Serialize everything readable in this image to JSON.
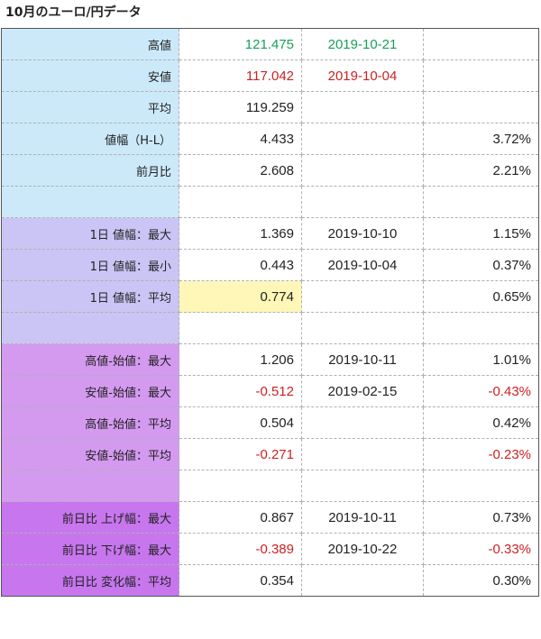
{
  "title": "10月のユーロ/円データ",
  "rows": [
    {
      "label": "高値",
      "value": "121.475",
      "date": "2019-10-21",
      "pct": ""
    },
    {
      "label": "安値",
      "value": "117.042",
      "date": "2019-10-04",
      "pct": ""
    },
    {
      "label": "平均",
      "value": "119.259",
      "date": "",
      "pct": ""
    },
    {
      "label": "値幅（H-L）",
      "value": "4.433",
      "date": "",
      "pct": "3.72%"
    },
    {
      "label": "前月比",
      "value": "2.608",
      "date": "",
      "pct": "2.21%"
    },
    {
      "label": "",
      "value": "",
      "date": "",
      "pct": ""
    },
    {
      "label": "1日 値幅：最大",
      "value": "1.369",
      "date": "2019-10-10",
      "pct": "1.15%"
    },
    {
      "label": "1日 値幅：最小",
      "value": "0.443",
      "date": "2019-10-04",
      "pct": "0.37%"
    },
    {
      "label": "1日 値幅：平均",
      "value": "0.774",
      "date": "",
      "pct": "0.65%"
    },
    {
      "label": "",
      "value": "",
      "date": "",
      "pct": ""
    },
    {
      "label": "高値-始値：最大",
      "value": "1.206",
      "date": "2019-10-11",
      "pct": "1.01%"
    },
    {
      "label": "安値-始値：最大",
      "value": "-0.512",
      "date": "2019-02-15",
      "pct": "-0.43%"
    },
    {
      "label": "高値-始値：平均",
      "value": "0.504",
      "date": "",
      "pct": "0.42%"
    },
    {
      "label": "安値-始値：平均",
      "value": "-0.271",
      "date": "",
      "pct": "-0.23%"
    },
    {
      "label": "",
      "value": "",
      "date": "",
      "pct": ""
    },
    {
      "label": "前日比 上げ幅：最大",
      "value": "0.867",
      "date": "2019-10-11",
      "pct": "0.73%"
    },
    {
      "label": "前日比 下げ幅：最大",
      "value": "-0.389",
      "date": "2019-10-22",
      "pct": "-0.33%"
    },
    {
      "label": "前日比 変化幅：平均",
      "value": "0.354",
      "date": "",
      "pct": "0.30%"
    }
  ],
  "colors": {
    "label_group_1": "#cce9f9",
    "label_group_2": "#cbc5f6",
    "label_group_3": "#d49af0",
    "label_group_4": "#c776ee",
    "highlight": "#fff7b8",
    "high_text": "#18a058",
    "low_text": "#cc2222"
  }
}
